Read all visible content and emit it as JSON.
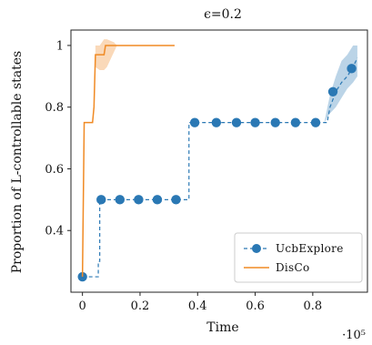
{
  "chart_data": {
    "type": "line",
    "title": "ϵ=0.2",
    "xlabel": "Time",
    "ylabel": "Proportion of L-controllable states",
    "x_scale_note": "·10⁵",
    "xlim": [
      -0.04,
      0.99
    ],
    "ylim": [
      0.2,
      1.05
    ],
    "xticks": [
      0,
      0.2,
      0.4,
      0.6,
      0.8
    ],
    "xtick_labels": [
      "0",
      "0.2",
      "0.4",
      "0.6",
      "0.8"
    ],
    "yticks": [
      0.4,
      0.6,
      0.8,
      1.0
    ],
    "ytick_labels": [
      "0.4",
      "0.6",
      "0.8",
      "1"
    ],
    "grid": false,
    "legend_position": "bottom-right",
    "series": [
      {
        "name": "UcbExplore",
        "color": "#2a78b4",
        "line_style": "dashed",
        "marker": "circle",
        "line": [
          [
            0,
            0.25
          ],
          [
            0.055,
            0.25
          ],
          [
            0.055,
            0.3
          ],
          [
            0.06,
            0.3
          ],
          [
            0.06,
            0.5
          ],
          [
            0.37,
            0.5
          ],
          [
            0.37,
            0.75
          ],
          [
            0.85,
            0.75
          ],
          [
            0.86,
            0.8
          ],
          [
            0.88,
            0.85
          ],
          [
            0.9,
            0.88
          ],
          [
            0.92,
            0.9
          ],
          [
            0.94,
            0.93
          ],
          [
            0.955,
            0.96
          ]
        ],
        "markers": [
          [
            0,
            0.25
          ],
          [
            0.065,
            0.5
          ],
          [
            0.13,
            0.5
          ],
          [
            0.195,
            0.5
          ],
          [
            0.26,
            0.5
          ],
          [
            0.325,
            0.5
          ],
          [
            0.39,
            0.75
          ],
          [
            0.465,
            0.75
          ],
          [
            0.535,
            0.75
          ],
          [
            0.6,
            0.75
          ],
          [
            0.67,
            0.75
          ],
          [
            0.74,
            0.75
          ],
          [
            0.81,
            0.75
          ],
          [
            0.87,
            0.85
          ],
          [
            0.935,
            0.925
          ]
        ],
        "band": [
          [
            0.84,
            0.75,
            0.75
          ],
          [
            0.86,
            0.78,
            0.84
          ],
          [
            0.88,
            0.8,
            0.9
          ],
          [
            0.9,
            0.83,
            0.95
          ],
          [
            0.92,
            0.86,
            0.97
          ],
          [
            0.94,
            0.88,
            1.0
          ],
          [
            0.955,
            0.9,
            1.0
          ]
        ]
      },
      {
        "name": "DisCo",
        "color": "#f08a24",
        "line_style": "solid",
        "line": [
          [
            0,
            0.25
          ],
          [
            0.003,
            0.5
          ],
          [
            0.006,
            0.75
          ],
          [
            0.035,
            0.75
          ],
          [
            0.04,
            0.8
          ],
          [
            0.045,
            0.97
          ],
          [
            0.075,
            0.97
          ],
          [
            0.08,
            1.0
          ],
          [
            0.32,
            1.0
          ]
        ],
        "band": [
          [
            0.045,
            0.93,
            1.0
          ],
          [
            0.06,
            0.92,
            1.0
          ],
          [
            0.075,
            0.92,
            1.02
          ],
          [
            0.085,
            0.93,
            1.02
          ],
          [
            0.11,
            0.98,
            1.01
          ],
          [
            0.12,
            1.0,
            1.0
          ]
        ]
      }
    ]
  }
}
